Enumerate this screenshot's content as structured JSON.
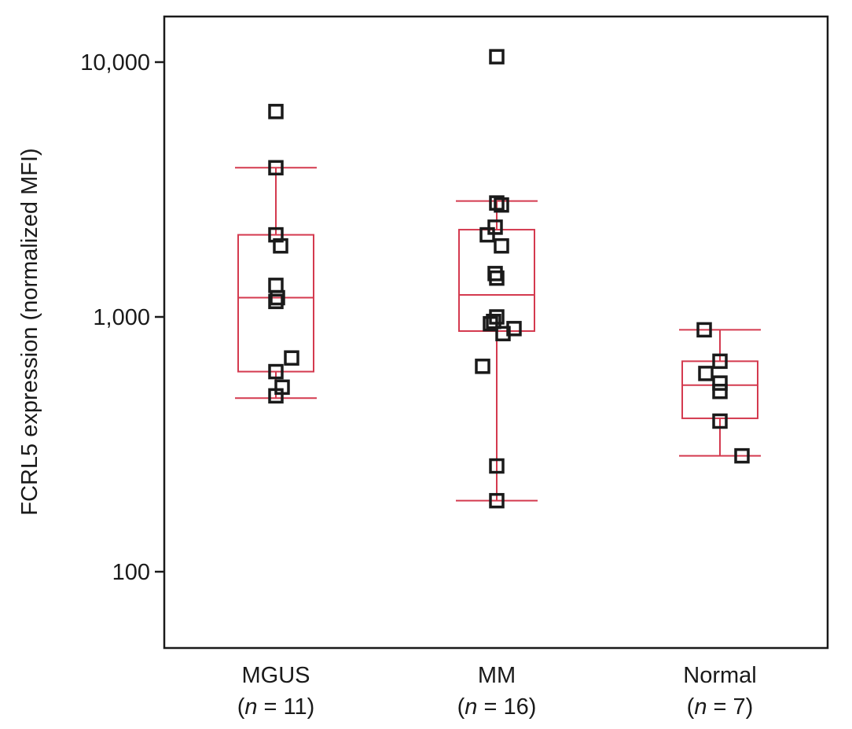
{
  "chart_data": {
    "type": "box",
    "ylabel": "FCRL5 expression (normalized MFI)",
    "yscale": "log",
    "ylim": [
      50,
      16000
    ],
    "yticks": [
      {
        "value": 100,
        "label": "100"
      },
      {
        "value": 1000,
        "label": "1,000"
      },
      {
        "value": 10000,
        "label": "10,000"
      }
    ],
    "colors": {
      "box": "#d43a4f",
      "points": "#1a1a1a"
    },
    "groups": [
      {
        "name": "MGUS",
        "n_prefix": "(",
        "n_italic": "n",
        "n_suffix": " = 11)",
        "box": {
          "whisker_low": 480,
          "q1": 610,
          "median": 1190,
          "q3": 2100,
          "whisker_high": 3850
        },
        "points": [
          {
            "value": 6400,
            "dx": 0
          },
          {
            "value": 3850,
            "dx": 0
          },
          {
            "value": 2100,
            "dx": 0
          },
          {
            "value": 1900,
            "dx": 0.3
          },
          {
            "value": 1330,
            "dx": 0
          },
          {
            "value": 1190,
            "dx": 0.1
          },
          {
            "value": 1150,
            "dx": 0
          },
          {
            "value": 690,
            "dx": 1
          },
          {
            "value": 610,
            "dx": 0
          },
          {
            "value": 530,
            "dx": 0.4
          },
          {
            "value": 490,
            "dx": 0
          }
        ]
      },
      {
        "name": "MM",
        "n_prefix": "(",
        "n_italic": "n",
        "n_suffix": " = 16)",
        "box": {
          "whisker_low": 190,
          "q1": 880,
          "median": 1220,
          "q3": 2200,
          "whisker_high": 2850
        },
        "points": [
          {
            "value": 10500,
            "dx": 0
          },
          {
            "value": 2800,
            "dx": 0
          },
          {
            "value": 2750,
            "dx": 0.3
          },
          {
            "value": 2250,
            "dx": -0.1
          },
          {
            "value": 2100,
            "dx": -0.6
          },
          {
            "value": 1900,
            "dx": 0.3
          },
          {
            "value": 1480,
            "dx": -0.1
          },
          {
            "value": 1420,
            "dx": 0
          },
          {
            "value": 1000,
            "dx": 0
          },
          {
            "value": 960,
            "dx": -0.2
          },
          {
            "value": 940,
            "dx": -0.4
          },
          {
            "value": 900,
            "dx": 1.1
          },
          {
            "value": 860,
            "dx": 0.4
          },
          {
            "value": 640,
            "dx": -0.9
          },
          {
            "value": 260,
            "dx": 0
          },
          {
            "value": 190,
            "dx": 0
          }
        ]
      },
      {
        "name": "Normal",
        "n_prefix": "(",
        "n_italic": "n",
        "n_suffix": " = 7)",
        "box": {
          "whisker_low": 285,
          "q1": 400,
          "median": 540,
          "q3": 670,
          "whisker_high": 890
        },
        "points": [
          {
            "value": 890,
            "dx": -1
          },
          {
            "value": 670,
            "dx": 0
          },
          {
            "value": 600,
            "dx": -0.9
          },
          {
            "value": 550,
            "dx": 0
          },
          {
            "value": 510,
            "dx": 0
          },
          {
            "value": 390,
            "dx": 0
          },
          {
            "value": 285,
            "dx": 1.4
          }
        ]
      }
    ]
  }
}
